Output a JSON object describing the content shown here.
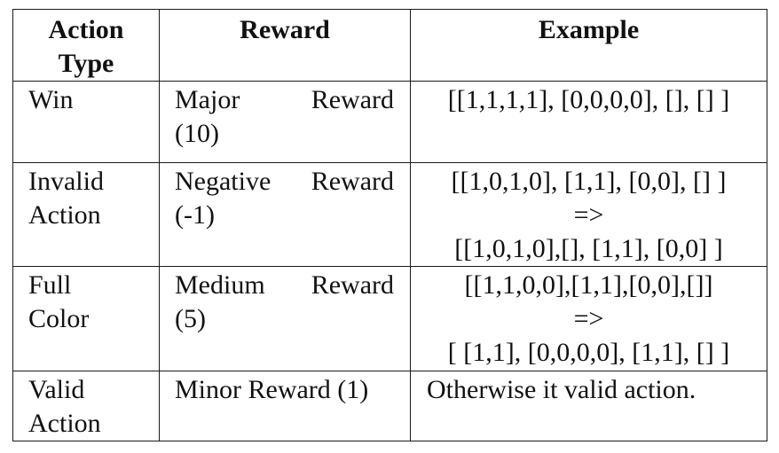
{
  "table": {
    "headers": [
      "Action Type",
      "Reward",
      "Example"
    ],
    "header_lines": {
      "type": [
        "Action",
        "Type"
      ]
    },
    "rows": [
      {
        "type_lines": [
          "Win"
        ],
        "reward_line1": [
          "Major",
          "Reward"
        ],
        "reward_line2": "(10)",
        "example_lines": [
          "[[1,1,1,1], [0,0,0,0], [], [] ]"
        ]
      },
      {
        "type_lines": [
          "Invalid",
          "Action"
        ],
        "reward_line1": [
          "Negative",
          "Reward"
        ],
        "reward_line2": "(-1)",
        "example_lines": [
          "[[1,0,1,0], [1,1], [0,0], [] ]",
          "=>",
          "[[1,0,1,0],[], [1,1], [0,0] ]"
        ]
      },
      {
        "type_lines": [
          "Full",
          "Color"
        ],
        "reward_line1": [
          "Medium",
          "Reward"
        ],
        "reward_line2": "(5)",
        "example_lines": [
          "[[1,1,0,0],[1,1],[0,0],[]]",
          "=>",
          "[ [1,1], [0,0,0,0], [1,1], [] ]"
        ]
      },
      {
        "type_lines": [
          "Valid",
          "Action"
        ],
        "reward_single": "Minor Reward (1)",
        "example_lines": [
          "Otherwise it valid action."
        ]
      }
    ]
  }
}
